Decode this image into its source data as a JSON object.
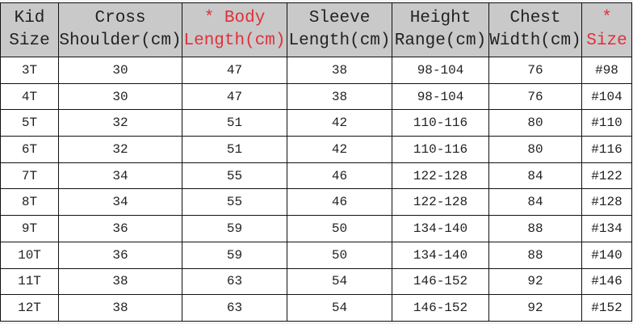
{
  "headers": [
    {
      "line1": "Kid",
      "line2": "Size",
      "highlight": false
    },
    {
      "line1": "Cross",
      "line2": "Shoulder(cm)",
      "highlight": false
    },
    {
      "line1": "* Body",
      "line2": "Length(cm)",
      "highlight": true
    },
    {
      "line1": "Sleeve",
      "line2": "Length(cm)",
      "highlight": false
    },
    {
      "line1": "Height",
      "line2": "Range(cm)",
      "highlight": false
    },
    {
      "line1": "Chest",
      "line2": "Width(cm)",
      "highlight": false
    },
    {
      "line1": "*",
      "line2": "Size",
      "highlight": true
    }
  ],
  "highlight_color": "#e0303a",
  "header_bg": "#c9c9c9",
  "rows": [
    [
      "3T",
      "30",
      "47",
      "38",
      "98-104",
      "76",
      "#98"
    ],
    [
      "4T",
      "30",
      "47",
      "38",
      "98-104",
      "76",
      "#104"
    ],
    [
      "5T",
      "32",
      "51",
      "42",
      "110-116",
      "80",
      "#110"
    ],
    [
      "6T",
      "32",
      "51",
      "42",
      "110-116",
      "80",
      "#116"
    ],
    [
      "7T",
      "34",
      "55",
      "46",
      "122-128",
      "84",
      "#122"
    ],
    [
      "8T",
      "34",
      "55",
      "46",
      "122-128",
      "84",
      "#128"
    ],
    [
      "9T",
      "36",
      "59",
      "50",
      "134-140",
      "88",
      "#134"
    ],
    [
      "10T",
      "36",
      "59",
      "50",
      "134-140",
      "88",
      "#140"
    ],
    [
      "11T",
      "38",
      "63",
      "54",
      "146-152",
      "92",
      "#146"
    ],
    [
      "12T",
      "38",
      "63",
      "54",
      "146-152",
      "92",
      "#152"
    ]
  ]
}
